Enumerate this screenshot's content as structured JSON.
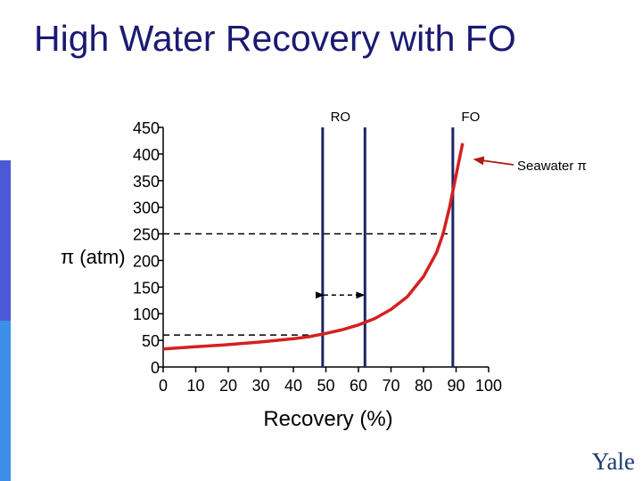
{
  "slide": {
    "title": "High Water Recovery with FO",
    "logo": "Yale"
  },
  "colors": {
    "title": "#1a1a73",
    "sidebar_top": "#ffffff",
    "sidebar_middle": "#4a5ad6",
    "sidebar_bottom": "#3d8ee6",
    "curve": "#d42121",
    "marker_lines": "#1f2466",
    "axis": "#000000"
  },
  "chart_data": {
    "type": "line",
    "title": "",
    "xlabel": "Recovery (%)",
    "ylabel": "π (atm)",
    "xlim": [
      0,
      100
    ],
    "ylim": [
      0,
      450
    ],
    "xticks": [
      0,
      10,
      20,
      30,
      40,
      50,
      60,
      70,
      80,
      90,
      100
    ],
    "yticks": [
      0,
      50,
      100,
      150,
      200,
      250,
      300,
      350,
      400,
      450
    ],
    "grid": false,
    "series": [
      {
        "name": "",
        "x": [
          0,
          10,
          20,
          30,
          40,
          45,
          50,
          55,
          60,
          65,
          70,
          75,
          80,
          84,
          86,
          88,
          90,
          92
        ],
        "y": [
          34,
          38,
          42,
          47,
          53,
          57,
          63,
          70,
          79,
          91,
          108,
          132,
          170,
          215,
          250,
          300,
          360,
          420
        ]
      }
    ],
    "reference_lines": {
      "vertical": [
        {
          "x": 49,
          "label": "RO"
        },
        {
          "x": 62,
          "label": ""
        },
        {
          "x": 89,
          "label": "FO"
        }
      ],
      "horizontal_dashed": [
        {
          "y": 250,
          "x_to": 89
        },
        {
          "y": 60,
          "x_to": 49
        }
      ],
      "range_arrow": {
        "x_from": 49,
        "x_to": 62,
        "y": 135
      }
    },
    "annotation": {
      "text": "Seawater π",
      "arrow_to": {
        "x": 95,
        "y": 390
      }
    }
  }
}
